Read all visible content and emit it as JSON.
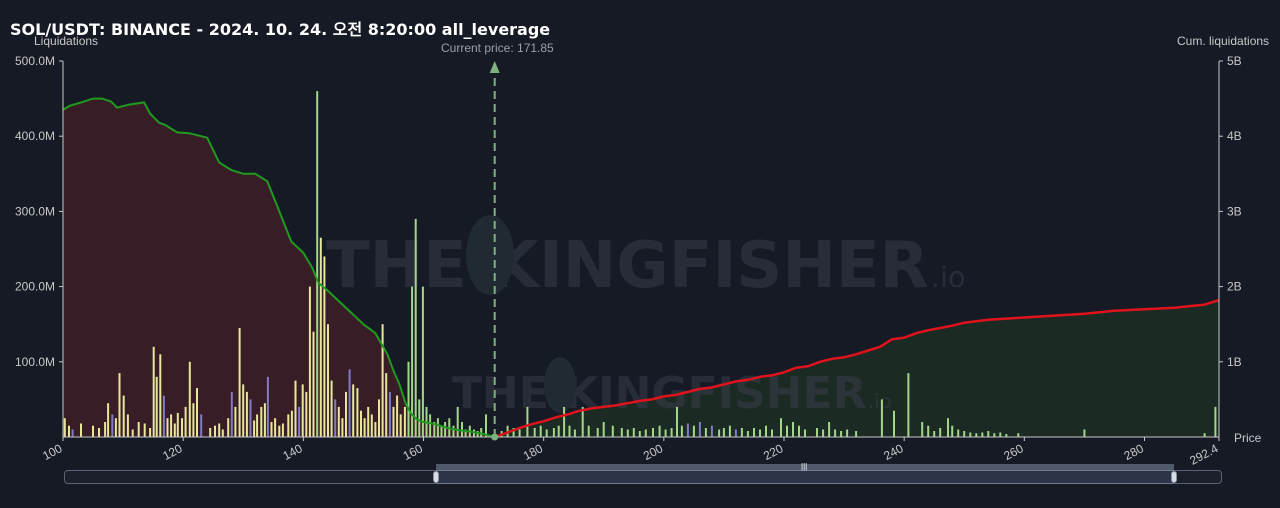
{
  "title": "SOL/USDT: BINANCE - 2024. 10. 24. 오전 8:20:00 all_leverage",
  "left_axis_title": "Liquidations",
  "right_axis_title": "Cum. liquidations",
  "x_axis_title": "Price",
  "current_price_label": "Current price: 171.85",
  "watermark": "THE KINGFISHER .io",
  "colors": {
    "background": "#161a25",
    "short_cum_line": "#1f9a1f",
    "long_cum_line": "#e0121c",
    "short_cum_fill": "#3a1d27",
    "long_cum_fill": "#1c2b24",
    "bar_yellow": "#e7e79a",
    "bar_green": "#a4d68a",
    "bar_purple": "#7f7cc4",
    "current_price_line": "#7fb17f"
  },
  "chart_data": {
    "type": "bar",
    "x_label": "Price",
    "x_range": [
      100,
      292.4
    ],
    "x_ticks": [
      "100",
      "120",
      "140",
      "160",
      "180",
      "200",
      "220",
      "240",
      "260",
      "280",
      "292.4"
    ],
    "y_left_label": "Liquidations",
    "y_left_range": [
      0,
      500000000
    ],
    "y_left_ticks": [
      "100.0M",
      "200.0M",
      "300.0M",
      "400.0M",
      "500.0M"
    ],
    "y_right_label": "Cum. liquidations",
    "y_right_range": [
      0,
      5000000000
    ],
    "y_right_ticks": [
      "1B",
      "2B",
      "3B",
      "4B",
      "5B"
    ],
    "current_price": 171.85,
    "grid": false,
    "bars": [
      {
        "x": 100.3,
        "y": 25000000,
        "c": "yellow"
      },
      {
        "x": 101.0,
        "y": 15000000,
        "c": "yellow"
      },
      {
        "x": 101.6,
        "y": 10000000,
        "c": "purple"
      },
      {
        "x": 103.0,
        "y": 18000000,
        "c": "yellow"
      },
      {
        "x": 105.0,
        "y": 15000000,
        "c": "yellow"
      },
      {
        "x": 106.0,
        "y": 12000000,
        "c": "yellow"
      },
      {
        "x": 107.0,
        "y": 20000000,
        "c": "yellow"
      },
      {
        "x": 107.5,
        "y": 45000000,
        "c": "yellow"
      },
      {
        "x": 108.2,
        "y": 30000000,
        "c": "purple"
      },
      {
        "x": 108.8,
        "y": 25000000,
        "c": "yellow"
      },
      {
        "x": 109.4,
        "y": 85000000,
        "c": "yellow"
      },
      {
        "x": 110.1,
        "y": 55000000,
        "c": "yellow"
      },
      {
        "x": 110.8,
        "y": 30000000,
        "c": "yellow"
      },
      {
        "x": 111.6,
        "y": 10000000,
        "c": "yellow"
      },
      {
        "x": 112.6,
        "y": 20000000,
        "c": "yellow"
      },
      {
        "x": 113.6,
        "y": 18000000,
        "c": "yellow"
      },
      {
        "x": 114.5,
        "y": 12000000,
        "c": "yellow"
      },
      {
        "x": 115.1,
        "y": 120000000,
        "c": "yellow"
      },
      {
        "x": 115.6,
        "y": 80000000,
        "c": "yellow"
      },
      {
        "x": 116.2,
        "y": 110000000,
        "c": "yellow"
      },
      {
        "x": 116.8,
        "y": 55000000,
        "c": "purple"
      },
      {
        "x": 117.4,
        "y": 25000000,
        "c": "yellow"
      },
      {
        "x": 118.0,
        "y": 30000000,
        "c": "yellow"
      },
      {
        "x": 118.6,
        "y": 18000000,
        "c": "yellow"
      },
      {
        "x": 119.1,
        "y": 32000000,
        "c": "yellow"
      },
      {
        "x": 119.8,
        "y": 25000000,
        "c": "yellow"
      },
      {
        "x": 120.4,
        "y": 40000000,
        "c": "yellow"
      },
      {
        "x": 121.1,
        "y": 100000000,
        "c": "yellow"
      },
      {
        "x": 121.7,
        "y": 45000000,
        "c": "yellow"
      },
      {
        "x": 122.3,
        "y": 65000000,
        "c": "yellow"
      },
      {
        "x": 123.0,
        "y": 30000000,
        "c": "purple"
      },
      {
        "x": 124.5,
        "y": 12000000,
        "c": "yellow"
      },
      {
        "x": 125.3,
        "y": 15000000,
        "c": "yellow"
      },
      {
        "x": 126.0,
        "y": 18000000,
        "c": "yellow"
      },
      {
        "x": 126.6,
        "y": 10000000,
        "c": "yellow"
      },
      {
        "x": 127.5,
        "y": 25000000,
        "c": "yellow"
      },
      {
        "x": 128.1,
        "y": 60000000,
        "c": "purple"
      },
      {
        "x": 128.7,
        "y": 40000000,
        "c": "yellow"
      },
      {
        "x": 129.4,
        "y": 145000000,
        "c": "yellow"
      },
      {
        "x": 130.0,
        "y": 70000000,
        "c": "yellow"
      },
      {
        "x": 130.6,
        "y": 60000000,
        "c": "yellow"
      },
      {
        "x": 131.2,
        "y": 50000000,
        "c": "purple"
      },
      {
        "x": 131.8,
        "y": 22000000,
        "c": "yellow"
      },
      {
        "x": 132.3,
        "y": 30000000,
        "c": "yellow"
      },
      {
        "x": 133.0,
        "y": 40000000,
        "c": "yellow"
      },
      {
        "x": 133.6,
        "y": 45000000,
        "c": "yellow"
      },
      {
        "x": 134.1,
        "y": 80000000,
        "c": "purple"
      },
      {
        "x": 134.7,
        "y": 20000000,
        "c": "yellow"
      },
      {
        "x": 135.3,
        "y": 25000000,
        "c": "yellow"
      },
      {
        "x": 136.0,
        "y": 15000000,
        "c": "yellow"
      },
      {
        "x": 136.6,
        "y": 18000000,
        "c": "yellow"
      },
      {
        "x": 137.5,
        "y": 30000000,
        "c": "yellow"
      },
      {
        "x": 138.1,
        "y": 35000000,
        "c": "yellow"
      },
      {
        "x": 138.7,
        "y": 75000000,
        "c": "yellow"
      },
      {
        "x": 139.3,
        "y": 40000000,
        "c": "purple"
      },
      {
        "x": 139.9,
        "y": 70000000,
        "c": "yellow"
      },
      {
        "x": 140.5,
        "y": 60000000,
        "c": "yellow"
      },
      {
        "x": 141.1,
        "y": 200000000,
        "c": "yellow"
      },
      {
        "x": 141.7,
        "y": 140000000,
        "c": "yellow"
      },
      {
        "x": 142.3,
        "y": 460000000,
        "c": "green"
      },
      {
        "x": 142.9,
        "y": 265000000,
        "c": "yellow"
      },
      {
        "x": 143.5,
        "y": 240000000,
        "c": "yellow"
      },
      {
        "x": 144.1,
        "y": 150000000,
        "c": "yellow"
      },
      {
        "x": 144.7,
        "y": 75000000,
        "c": "yellow"
      },
      {
        "x": 145.3,
        "y": 50000000,
        "c": "purple"
      },
      {
        "x": 145.9,
        "y": 40000000,
        "c": "yellow"
      },
      {
        "x": 146.5,
        "y": 25000000,
        "c": "yellow"
      },
      {
        "x": 147.1,
        "y": 60000000,
        "c": "yellow"
      },
      {
        "x": 147.7,
        "y": 90000000,
        "c": "purple"
      },
      {
        "x": 148.3,
        "y": 70000000,
        "c": "yellow"
      },
      {
        "x": 149.0,
        "y": 65000000,
        "c": "yellow"
      },
      {
        "x": 149.6,
        "y": 35000000,
        "c": "yellow"
      },
      {
        "x": 150.2,
        "y": 25000000,
        "c": "yellow"
      },
      {
        "x": 150.8,
        "y": 40000000,
        "c": "yellow"
      },
      {
        "x": 151.4,
        "y": 30000000,
        "c": "yellow"
      },
      {
        "x": 152.0,
        "y": 20000000,
        "c": "yellow"
      },
      {
        "x": 152.6,
        "y": 50000000,
        "c": "yellow"
      },
      {
        "x": 153.2,
        "y": 150000000,
        "c": "yellow"
      },
      {
        "x": 153.8,
        "y": 85000000,
        "c": "yellow"
      },
      {
        "x": 154.4,
        "y": 60000000,
        "c": "purple"
      },
      {
        "x": 155.0,
        "y": 40000000,
        "c": "yellow"
      },
      {
        "x": 155.6,
        "y": 55000000,
        "c": "yellow"
      },
      {
        "x": 156.2,
        "y": 30000000,
        "c": "yellow"
      },
      {
        "x": 156.9,
        "y": 40000000,
        "c": "yellow"
      },
      {
        "x": 157.5,
        "y": 100000000,
        "c": "green"
      },
      {
        "x": 158.1,
        "y": 200000000,
        "c": "green"
      },
      {
        "x": 158.7,
        "y": 290000000,
        "c": "green"
      },
      {
        "x": 159.3,
        "y": 50000000,
        "c": "green"
      },
      {
        "x": 159.9,
        "y": 200000000,
        "c": "green"
      },
      {
        "x": 160.5,
        "y": 40000000,
        "c": "green"
      },
      {
        "x": 161.1,
        "y": 30000000,
        "c": "green"
      },
      {
        "x": 161.8,
        "y": 20000000,
        "c": "green"
      },
      {
        "x": 162.4,
        "y": 25000000,
        "c": "green"
      },
      {
        "x": 163.0,
        "y": 15000000,
        "c": "green"
      },
      {
        "x": 163.6,
        "y": 20000000,
        "c": "green"
      },
      {
        "x": 164.3,
        "y": 25000000,
        "c": "green"
      },
      {
        "x": 165.0,
        "y": 15000000,
        "c": "green"
      },
      {
        "x": 165.7,
        "y": 40000000,
        "c": "green"
      },
      {
        "x": 166.4,
        "y": 20000000,
        "c": "green"
      },
      {
        "x": 167.0,
        "y": 10000000,
        "c": "green"
      },
      {
        "x": 167.7,
        "y": 15000000,
        "c": "green"
      },
      {
        "x": 168.4,
        "y": 10000000,
        "c": "green"
      },
      {
        "x": 169.0,
        "y": 8000000,
        "c": "green"
      },
      {
        "x": 169.6,
        "y": 12000000,
        "c": "green"
      },
      {
        "x": 170.4,
        "y": 30000000,
        "c": "green"
      },
      {
        "x": 173.0,
        "y": 8000000,
        "c": "green"
      },
      {
        "x": 174.0,
        "y": 15000000,
        "c": "green"
      },
      {
        "x": 175.0,
        "y": 12000000,
        "c": "green"
      },
      {
        "x": 176.0,
        "y": 10000000,
        "c": "green"
      },
      {
        "x": 177.3,
        "y": 40000000,
        "c": "green"
      },
      {
        "x": 178.5,
        "y": 12000000,
        "c": "green"
      },
      {
        "x": 179.5,
        "y": 15000000,
        "c": "green"
      },
      {
        "x": 180.5,
        "y": 10000000,
        "c": "green"
      },
      {
        "x": 181.7,
        "y": 12000000,
        "c": "green"
      },
      {
        "x": 182.5,
        "y": 15000000,
        "c": "green"
      },
      {
        "x": 183.4,
        "y": 40000000,
        "c": "green"
      },
      {
        "x": 184.3,
        "y": 15000000,
        "c": "green"
      },
      {
        "x": 185.2,
        "y": 10000000,
        "c": "green"
      },
      {
        "x": 186.5,
        "y": 40000000,
        "c": "green"
      },
      {
        "x": 187.5,
        "y": 15000000,
        "c": "green"
      },
      {
        "x": 189.0,
        "y": 12000000,
        "c": "green"
      },
      {
        "x": 190.0,
        "y": 20000000,
        "c": "green"
      },
      {
        "x": 191.5,
        "y": 15000000,
        "c": "green"
      },
      {
        "x": 193.0,
        "y": 12000000,
        "c": "green"
      },
      {
        "x": 194.0,
        "y": 10000000,
        "c": "green"
      },
      {
        "x": 195.0,
        "y": 12000000,
        "c": "green"
      },
      {
        "x": 196.0,
        "y": 8000000,
        "c": "green"
      },
      {
        "x": 197.0,
        "y": 10000000,
        "c": "green"
      },
      {
        "x": 198.2,
        "y": 12000000,
        "c": "green"
      },
      {
        "x": 199.3,
        "y": 15000000,
        "c": "green"
      },
      {
        "x": 200.3,
        "y": 10000000,
        "c": "green"
      },
      {
        "x": 201.3,
        "y": 12000000,
        "c": "green"
      },
      {
        "x": 202.2,
        "y": 40000000,
        "c": "green"
      },
      {
        "x": 203.0,
        "y": 15000000,
        "c": "green"
      },
      {
        "x": 204.0,
        "y": 18000000,
        "c": "purple"
      },
      {
        "x": 205.0,
        "y": 15000000,
        "c": "green"
      },
      {
        "x": 206.0,
        "y": 20000000,
        "c": "purple"
      },
      {
        "x": 207.0,
        "y": 12000000,
        "c": "green"
      },
      {
        "x": 208.0,
        "y": 15000000,
        "c": "purple"
      },
      {
        "x": 209.2,
        "y": 10000000,
        "c": "green"
      },
      {
        "x": 210.0,
        "y": 12000000,
        "c": "green"
      },
      {
        "x": 211.0,
        "y": 15000000,
        "c": "green"
      },
      {
        "x": 212.0,
        "y": 10000000,
        "c": "purple"
      },
      {
        "x": 213.0,
        "y": 12000000,
        "c": "green"
      },
      {
        "x": 214.0,
        "y": 8000000,
        "c": "green"
      },
      {
        "x": 215.0,
        "y": 12000000,
        "c": "green"
      },
      {
        "x": 216.0,
        "y": 10000000,
        "c": "green"
      },
      {
        "x": 217.0,
        "y": 15000000,
        "c": "green"
      },
      {
        "x": 218.0,
        "y": 10000000,
        "c": "green"
      },
      {
        "x": 219.5,
        "y": 25000000,
        "c": "green"
      },
      {
        "x": 220.5,
        "y": 15000000,
        "c": "green"
      },
      {
        "x": 221.5,
        "y": 20000000,
        "c": "green"
      },
      {
        "x": 222.5,
        "y": 15000000,
        "c": "green"
      },
      {
        "x": 223.5,
        "y": 10000000,
        "c": "green"
      },
      {
        "x": 225.5,
        "y": 12000000,
        "c": "green"
      },
      {
        "x": 226.5,
        "y": 10000000,
        "c": "green"
      },
      {
        "x": 227.5,
        "y": 20000000,
        "c": "green"
      },
      {
        "x": 228.5,
        "y": 10000000,
        "c": "green"
      },
      {
        "x": 229.5,
        "y": 8000000,
        "c": "green"
      },
      {
        "x": 230.5,
        "y": 10000000,
        "c": "green"
      },
      {
        "x": 232.0,
        "y": 8000000,
        "c": "green"
      },
      {
        "x": 236.3,
        "y": 50000000,
        "c": "green"
      },
      {
        "x": 238.3,
        "y": 35000000,
        "c": "green"
      },
      {
        "x": 240.7,
        "y": 85000000,
        "c": "green"
      },
      {
        "x": 243.0,
        "y": 20000000,
        "c": "green"
      },
      {
        "x": 244.0,
        "y": 15000000,
        "c": "green"
      },
      {
        "x": 245.0,
        "y": 8000000,
        "c": "green"
      },
      {
        "x": 246.0,
        "y": 12000000,
        "c": "green"
      },
      {
        "x": 247.3,
        "y": 25000000,
        "c": "green"
      },
      {
        "x": 248.0,
        "y": 15000000,
        "c": "green"
      },
      {
        "x": 249.0,
        "y": 10000000,
        "c": "green"
      },
      {
        "x": 250.0,
        "y": 8000000,
        "c": "green"
      },
      {
        "x": 251.0,
        "y": 6000000,
        "c": "green"
      },
      {
        "x": 252.0,
        "y": 5000000,
        "c": "green"
      },
      {
        "x": 253.0,
        "y": 6000000,
        "c": "green"
      },
      {
        "x": 254.0,
        "y": 8000000,
        "c": "green"
      },
      {
        "x": 255.0,
        "y": 5000000,
        "c": "green"
      },
      {
        "x": 256.0,
        "y": 6000000,
        "c": "green"
      },
      {
        "x": 257.0,
        "y": 4000000,
        "c": "green"
      },
      {
        "x": 259.0,
        "y": 5000000,
        "c": "green"
      },
      {
        "x": 270.0,
        "y": 10000000,
        "c": "green"
      },
      {
        "x": 290.0,
        "y": 5000000,
        "c": "green"
      },
      {
        "x": 291.8,
        "y": 40000000,
        "c": "green"
      }
    ],
    "series": [
      {
        "name": "",
        "side": "short",
        "x": [
          100,
          101,
          103,
          105,
          106.5,
          108,
          109,
          111,
          113.5,
          114.5,
          116,
          117,
          119,
          121,
          122,
          124,
          126,
          128,
          130,
          132,
          134,
          136,
          138,
          140,
          141.5,
          142.5,
          144,
          146,
          148,
          150,
          152,
          154,
          155,
          156,
          157,
          158,
          159,
          160,
          162,
          164,
          166,
          168,
          170,
          171.85
        ],
        "y": [
          4350000000,
          4400000000,
          4450000000,
          4500000000,
          4500000000,
          4460000000,
          4380000000,
          4420000000,
          4450000000,
          4300000000,
          4180000000,
          4150000000,
          4050000000,
          4040000000,
          4020000000,
          3980000000,
          3650000000,
          3550000000,
          3500000000,
          3500000000,
          3400000000,
          3000000000,
          2600000000,
          2450000000,
          2250000000,
          2050000000,
          1950000000,
          1800000000,
          1650000000,
          1500000000,
          1380000000,
          1100000000,
          880000000,
          700000000,
          450000000,
          300000000,
          230000000,
          200000000,
          170000000,
          120000000,
          90000000,
          70000000,
          40000000,
          0
        ]
      },
      {
        "name": "",
        "side": "long",
        "x": [
          171.85,
          174,
          176,
          178,
          180,
          182,
          184,
          186,
          188,
          190,
          192,
          194,
          196,
          198,
          200,
          202,
          204,
          206,
          208,
          210,
          212,
          214,
          216,
          218,
          220,
          222,
          224,
          226,
          228,
          230,
          232,
          234,
          236,
          238,
          240,
          242,
          244,
          246,
          248,
          250,
          254,
          258,
          262,
          266,
          270,
          275,
          280,
          285,
          290,
          292.4
        ],
        "y": [
          0,
          60000000,
          120000000,
          170000000,
          210000000,
          260000000,
          300000000,
          350000000,
          380000000,
          400000000,
          420000000,
          450000000,
          480000000,
          500000000,
          540000000,
          560000000,
          600000000,
          640000000,
          660000000,
          700000000,
          740000000,
          760000000,
          800000000,
          820000000,
          860000000,
          920000000,
          940000000,
          1000000000,
          1040000000,
          1060000000,
          1100000000,
          1150000000,
          1200000000,
          1300000000,
          1320000000,
          1380000000,
          1420000000,
          1450000000,
          1480000000,
          1520000000,
          1560000000,
          1580000000,
          1600000000,
          1620000000,
          1640000000,
          1680000000,
          1700000000,
          1720000000,
          1760000000,
          1820000000
        ]
      }
    ]
  }
}
